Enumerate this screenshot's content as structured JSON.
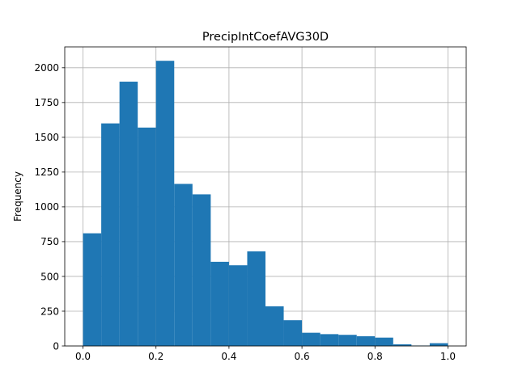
{
  "chart_data": {
    "type": "bar",
    "title": "PrecipIntCoefAVG30D",
    "xlabel": "",
    "ylabel": "Frequency",
    "xlim": [
      -0.05,
      1.05
    ],
    "ylim": [
      0,
      2150
    ],
    "grid": true,
    "bar_color": "#1f77b4",
    "x_ticks": [
      0.0,
      0.2,
      0.4,
      0.6,
      0.8,
      1.0
    ],
    "x_tick_labels": [
      "0.0",
      "0.2",
      "0.4",
      "0.6",
      "0.8",
      "1.0"
    ],
    "y_ticks": [
      0,
      250,
      500,
      750,
      1000,
      1250,
      1500,
      1750,
      2000
    ],
    "y_tick_labels": [
      "0",
      "250",
      "500",
      "750",
      "1000",
      "1250",
      "1500",
      "1750",
      "2000"
    ],
    "bin_edges": [
      0.0,
      0.05,
      0.1,
      0.15,
      0.2,
      0.25,
      0.3,
      0.35,
      0.4,
      0.45,
      0.5,
      0.55,
      0.6,
      0.65,
      0.7,
      0.75,
      0.8,
      0.85,
      0.9,
      0.95,
      1.0
    ],
    "values": [
      810,
      1600,
      1900,
      1570,
      2050,
      1165,
      1090,
      605,
      580,
      680,
      285,
      185,
      95,
      85,
      80,
      70,
      60,
      12,
      3,
      20
    ]
  }
}
